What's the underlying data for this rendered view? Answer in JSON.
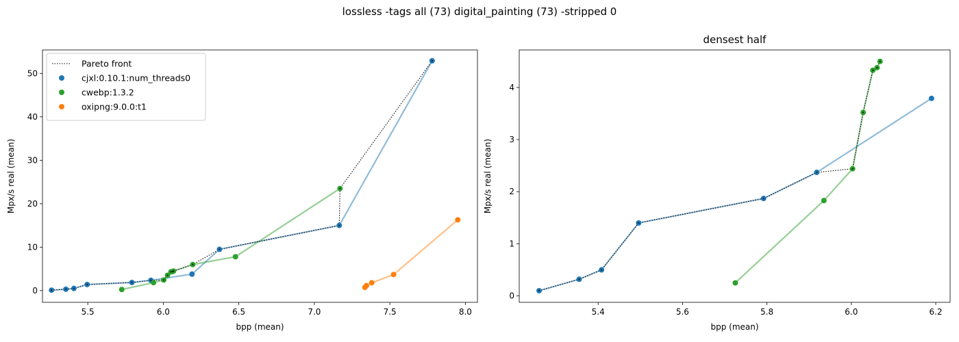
{
  "suptitle": "lossless -tags all (73) digital_painting (73) -stripped 0",
  "legend": {
    "pareto_label": "Pareto front",
    "entries": [
      "cjxl:0.10.1:num_threads0",
      "cwebp:1.3.2",
      "oxipng:9.0.0:t1"
    ]
  },
  "colors": {
    "cjxl": "#1f77b4",
    "cwebp": "#2ca02c",
    "oxipng": "#ff7f0e",
    "pareto": "#000000"
  },
  "chart_data": [
    {
      "type": "line",
      "title": "",
      "xlabel": "bpp (mean)",
      "ylabel": "Mpx/s real (mean)",
      "xlim": [
        5.2,
        8.08
      ],
      "ylim": [
        -2.7,
        55.4
      ],
      "xticks": [
        5.5,
        6.0,
        6.5,
        7.0,
        7.5,
        8.0
      ],
      "xtick_labels": [
        "5.5",
        "6.0",
        "6.5",
        "7.0",
        "7.5",
        "8.0"
      ],
      "yticks": [
        0,
        10,
        20,
        30,
        40,
        50
      ],
      "ytick_labels": [
        "0",
        "10",
        "20",
        "30",
        "40",
        "50"
      ],
      "legend_position": "upper-left",
      "series": [
        {
          "name": "cjxl:0.10.1:num_threads0",
          "color": "#1f77b4",
          "x": [
            5.26,
            5.355,
            5.408,
            5.496,
            5.792,
            5.918,
            6.19,
            6.372,
            7.165,
            7.78
          ],
          "y": [
            0.1,
            0.32,
            0.5,
            1.4,
            1.87,
            2.37,
            3.79,
            9.5,
            15.0,
            52.9
          ]
        },
        {
          "name": "cwebp:1.3.2",
          "color": "#2ca02c",
          "x": [
            5.725,
            5.935,
            6.003,
            6.028,
            6.051,
            6.061,
            6.068,
            6.195,
            6.478,
            7.17
          ],
          "y": [
            0.25,
            1.83,
            2.44,
            3.52,
            4.33,
            4.38,
            4.5,
            6.0,
            7.8,
            23.5
          ]
        },
        {
          "name": "oxipng:9.0.0:t1",
          "color": "#ff7f0e",
          "x": [
            7.335,
            7.345,
            7.38,
            7.525,
            7.95
          ],
          "y": [
            0.75,
            1.15,
            1.8,
            3.7,
            16.3
          ]
        },
        {
          "name": "Pareto front",
          "color": "#000000",
          "style": "dotted",
          "x": [
            5.26,
            5.355,
            5.408,
            5.496,
            5.792,
            5.918,
            6.003,
            6.028,
            6.051,
            6.061,
            6.068,
            6.195,
            6.372,
            7.165,
            7.17,
            7.78
          ],
          "y": [
            0.1,
            0.32,
            0.5,
            1.4,
            1.87,
            2.37,
            2.44,
            3.52,
            4.33,
            4.38,
            4.5,
            6.0,
            9.5,
            15.0,
            23.5,
            52.9
          ]
        }
      ]
    },
    {
      "type": "line",
      "title": "densest half",
      "xlabel": "bpp (mean)",
      "ylabel": "Mpx/s real (mean)",
      "xlim": [
        5.213,
        6.234
      ],
      "ylim": [
        -0.123,
        4.72
      ],
      "xticks": [
        5.4,
        5.6,
        5.8,
        6.0,
        6.2
      ],
      "xtick_labels": [
        "5.4",
        "5.6",
        "5.8",
        "6.0",
        "6.2"
      ],
      "yticks": [
        0,
        1,
        2,
        3,
        4
      ],
      "ytick_labels": [
        "0",
        "1",
        "2",
        "3",
        "4"
      ],
      "series": [
        {
          "name": "cjxl:0.10.1:num_threads0",
          "color": "#1f77b4",
          "x": [
            5.26,
            5.355,
            5.408,
            5.496,
            5.792,
            5.918,
            6.19
          ],
          "y": [
            0.1,
            0.32,
            0.5,
            1.4,
            1.87,
            2.37,
            3.79
          ]
        },
        {
          "name": "cwebp:1.3.2",
          "color": "#2ca02c",
          "x": [
            5.725,
            5.935,
            6.003,
            6.028,
            6.051,
            6.061,
            6.068
          ],
          "y": [
            0.25,
            1.83,
            2.44,
            3.52,
            4.33,
            4.38,
            4.5
          ]
        },
        {
          "name": "Pareto front",
          "color": "#000000",
          "style": "dotted",
          "x": [
            5.26,
            5.355,
            5.408,
            5.496,
            5.792,
            5.918,
            6.003,
            6.028,
            6.051,
            6.061,
            6.068
          ],
          "y": [
            0.1,
            0.32,
            0.5,
            1.4,
            1.87,
            2.37,
            2.44,
            3.52,
            4.33,
            4.38,
            4.5
          ]
        }
      ]
    }
  ]
}
